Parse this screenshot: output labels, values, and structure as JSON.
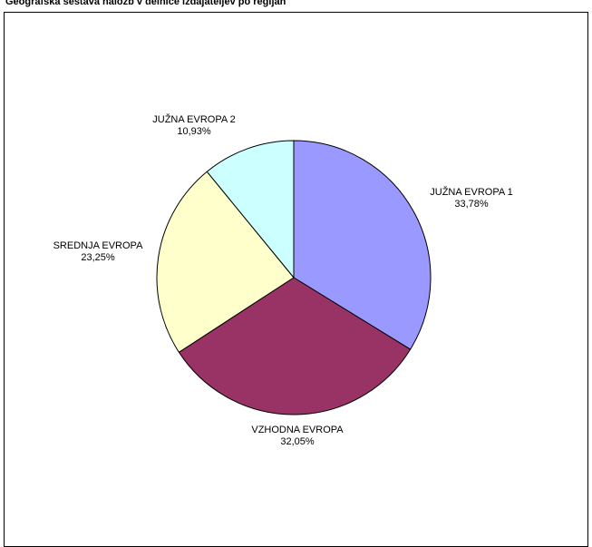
{
  "chart_data": {
    "type": "pie",
    "title": "Geografska sestava naložb v delnice izdajateljev po regijah",
    "slices": [
      {
        "name": "JUŽNA EVROPA 1",
        "value": 33.78,
        "label": "33,78%",
        "color": "#9999ff"
      },
      {
        "name": "VZHODNA EVROPA",
        "value": 32.05,
        "label": "32,05%",
        "color": "#993366"
      },
      {
        "name": "SREDNJA EVROPA",
        "value": 23.25,
        "label": "23,25%",
        "color": "#ffffcc"
      },
      {
        "name": "JUŽNA EVROPA 2",
        "value": 10.93,
        "label": "10,93%",
        "color": "#ccffff"
      }
    ],
    "start_angle": "12 o'clock",
    "direction": "clockwise",
    "legend": "none"
  }
}
